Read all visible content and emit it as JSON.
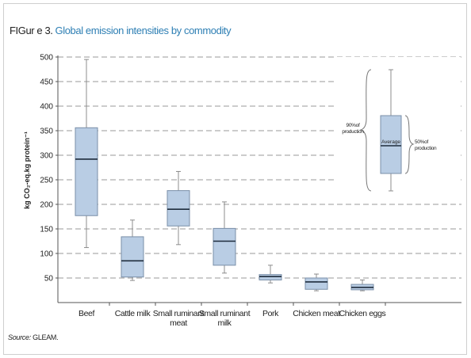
{
  "figure": {
    "prefix": "FIGur e 3.",
    "title": "Global emission intensities by commodity",
    "source_label": "Source:",
    "source_text": "GLEAM."
  },
  "colors": {
    "box_fill": "#b9cde4",
    "box_stroke": "#7a8fa8",
    "whisker": "#8c8c8c",
    "median": "#1f2d3d",
    "grid": "#9a9a9a",
    "title_accent": "#2e7fb4"
  },
  "chart_data": {
    "type": "boxplot",
    "ylabel": "kg CO₂-eq.kg protein⁻¹",
    "ylim": [
      0,
      500
    ],
    "yticks": [
      50,
      100,
      150,
      200,
      250,
      300,
      350,
      400,
      450,
      500
    ],
    "grid": "dashed horizontal",
    "boxes": [
      {
        "category": [
          "Beef"
        ],
        "min": 112,
        "q1": 177,
        "median": 292,
        "q3": 356,
        "max": 495
      },
      {
        "category": [
          "Cattle milk"
        ],
        "min": 45,
        "q1": 52,
        "median": 85,
        "q3": 134,
        "max": 168
      },
      {
        "category": [
          "Small ruminant",
          "meat"
        ],
        "min": 118,
        "q1": 156,
        "median": 190,
        "q3": 228,
        "max": 267
      },
      {
        "category": [
          "Small ruminant",
          "milk"
        ],
        "min": 60,
        "q1": 76,
        "median": 125,
        "q3": 151,
        "max": 205
      },
      {
        "category": [
          "Pork"
        ],
        "min": 40,
        "q1": 46,
        "median": 53,
        "q3": 57,
        "max": 76
      },
      {
        "category": [
          "Chicken meat"
        ],
        "min": 24,
        "q1": 27,
        "median": 42,
        "q3": 50,
        "max": 58
      },
      {
        "category": [
          "Chicken eggs"
        ],
        "min": 24,
        "q1": 26,
        "median": 31,
        "q3": 37,
        "max": 46
      }
    ],
    "legend": {
      "position": "top-right",
      "average_label": "Average",
      "outer_label": [
        "90%of",
        "production"
      ],
      "inner_label": [
        "50%of",
        "production"
      ]
    }
  }
}
